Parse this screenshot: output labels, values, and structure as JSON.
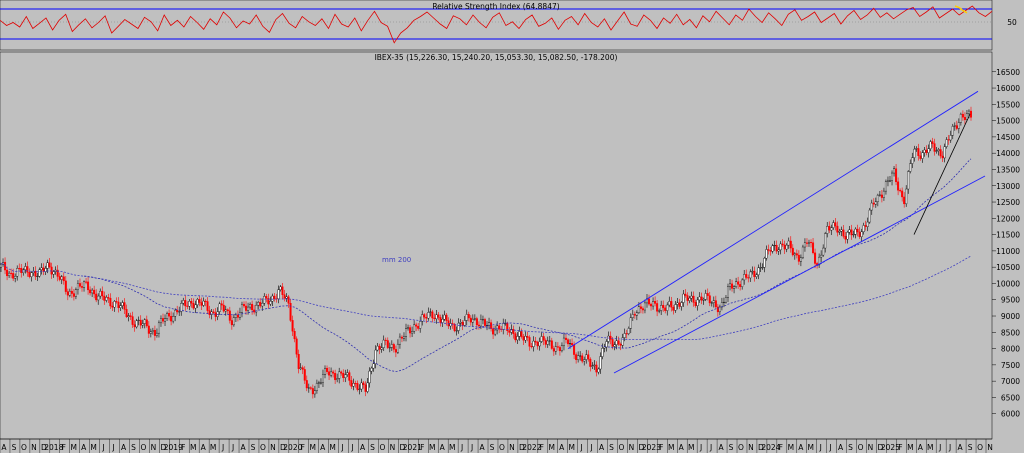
{
  "chart_data": [
    {
      "type": "line",
      "title": "Relative Strength Index (64.8847)",
      "y_levels": [
        30,
        50,
        70
      ],
      "ylabel_ticks": [
        "50"
      ],
      "series": [
        {
          "values": [
            55,
            48,
            52,
            46,
            60,
            44,
            51,
            58,
            42,
            55,
            63,
            40,
            49,
            57,
            45,
            52,
            61,
            38,
            47,
            56,
            50,
            44,
            59,
            53,
            41,
            62,
            48,
            55,
            46,
            60,
            52,
            43,
            57,
            49,
            66,
            58,
            45,
            54,
            50,
            62,
            47,
            39,
            56,
            64,
            51,
            45,
            60,
            53,
            48,
            57,
            44,
            63,
            50,
            46,
            58,
            41,
            55,
            67,
            52,
            47,
            25,
            38,
            45,
            55,
            60,
            66,
            58,
            50,
            44,
            61,
            57,
            49,
            62,
            52,
            45,
            59,
            65,
            48,
            53,
            44,
            56,
            62,
            47,
            51,
            58,
            43,
            55,
            60,
            49,
            64,
            52,
            46,
            57,
            42,
            54,
            66,
            50,
            47,
            62,
            55,
            44,
            58,
            51,
            63,
            49,
            56,
            45,
            61,
            53,
            67,
            58,
            49,
            62,
            55,
            70,
            60,
            52,
            65,
            57,
            48,
            63,
            69,
            55,
            60,
            66,
            52,
            58,
            64,
            50,
            61,
            68,
            56,
            62,
            71,
            59,
            65,
            57,
            63,
            69,
            72,
            60,
            66,
            73,
            58,
            64,
            70,
            62,
            68,
            74,
            65,
            60,
            67
          ]
        }
      ],
      "highlight": {
        "color": "#ffcc00",
        "values": [
          74,
          72,
          68,
          65
        ]
      }
    },
    {
      "type": "candlestick",
      "title": "IBEX-35 (15,226.30, 15,240.20, 15,053.30, 15,082.50, -178.200)",
      "annotation": "mm 200",
      "ylim": [
        5500,
        16800
      ],
      "yticks": [
        6000,
        6500,
        7000,
        7500,
        8000,
        8500,
        9000,
        9500,
        10000,
        10500,
        11000,
        11500,
        12000,
        12500,
        13000,
        13500,
        14000,
        14500,
        15000,
        15500,
        16000,
        16500
      ],
      "xticks": [
        "A",
        "S",
        "O",
        "N",
        "D",
        "2018",
        "F",
        "M",
        "A",
        "M",
        "J",
        "J",
        "A",
        "S",
        "O",
        "N",
        "D",
        "2019",
        "F",
        "M",
        "A",
        "M",
        "J",
        "J",
        "A",
        "S",
        "O",
        "N",
        "D",
        "2020",
        "F",
        "M",
        "A",
        "M",
        "J",
        "J",
        "A",
        "S",
        "O",
        "N",
        "D",
        "2021",
        "F",
        "M",
        "A",
        "M",
        "J",
        "J",
        "A",
        "S",
        "O",
        "N",
        "D",
        "2022",
        "F",
        "M",
        "A",
        "M",
        "J",
        "J",
        "A",
        "S",
        "O",
        "N",
        "D",
        "2023",
        "F",
        "M",
        "A",
        "M",
        "J",
        "J",
        "A",
        "S",
        "O",
        "N",
        "D",
        "2024",
        "F",
        "M",
        "A",
        "M",
        "J",
        "J",
        "A",
        "S",
        "O",
        "N",
        "D",
        "2025",
        "F",
        "M",
        "A",
        "M",
        "J",
        "J",
        "A",
        "S",
        "O",
        "N"
      ],
      "close_path": [
        10500,
        10300,
        10350,
        10400,
        10250,
        10600,
        10200,
        9700,
        9850,
        9950,
        9600,
        9500,
        9400,
        9100,
        8800,
        8700,
        8500,
        8900,
        9100,
        9300,
        9450,
        9350,
        9100,
        9250,
        8900,
        9150,
        9300,
        9350,
        9500,
        9800,
        9300,
        7500,
        6700,
        6900,
        7300,
        7200,
        7100,
        6900,
        6700,
        8000,
        8100,
        8050,
        8400,
        8700,
        8900,
        9100,
        8850,
        8700,
        8750,
        8950,
        8800,
        8600,
        8700,
        8500,
        8450,
        8100,
        8300,
        8100,
        8050,
        8200,
        7800,
        7600,
        7400,
        8200,
        8200,
        8300,
        9200,
        9300,
        9400,
        9200,
        9300,
        9550,
        9450,
        9600,
        9400,
        9300,
        9900,
        10100,
        10200,
        10500,
        11000,
        11200,
        11100,
        10800,
        11300,
        10600,
        11600,
        11800,
        11400,
        11600,
        11700,
        12600,
        12900,
        13400,
        12500,
        14100,
        14000,
        14200,
        14000,
        14600,
        15200,
        15082
      ]
    }
  ]
}
